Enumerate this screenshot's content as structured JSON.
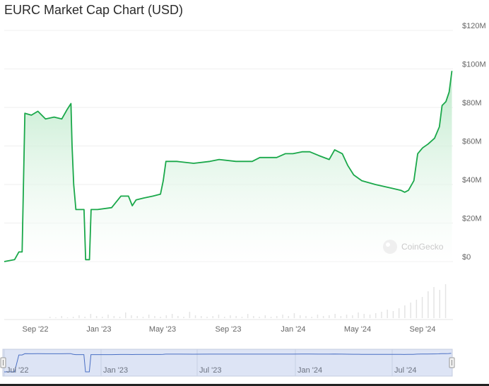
{
  "header": {
    "title": "EURC Market Cap Chart (USD)"
  },
  "watermark": "CoinGecko",
  "colors": {
    "line": "#1aa84a",
    "fillTop": "#b9e8c7",
    "grid": "#eeeeee",
    "navigator": "#d8e1f5",
    "navigatorLine": "#4a6fc4"
  },
  "chart_data": {
    "type": "area",
    "title": "EURC Market Cap Chart (USD)",
    "y_axis": {
      "ticks": [
        "$0",
        "$20M",
        "$40M",
        "$60M",
        "$80M",
        "$100M",
        "$120M"
      ],
      "ylim": [
        0,
        120
      ],
      "unit": "M USD",
      "position": "right"
    },
    "x_axis": {
      "ticks": [
        "Sep '22",
        "Jan '23",
        "May '23",
        "Sep '23",
        "Jan '24",
        "May '24",
        "Sep '24"
      ]
    },
    "navigator_ticks": [
      "Jul '22",
      "Jan '23",
      "Jul '23",
      "Jan '24",
      "Jul '24"
    ],
    "grid": true,
    "series": [
      {
        "values": [
          [
            "2022-07-01",
            0
          ],
          [
            "2022-07-20",
            1
          ],
          [
            "2022-07-28",
            5
          ],
          [
            "2022-08-03",
            5
          ],
          [
            "2022-08-08",
            77
          ],
          [
            "2022-08-20",
            76
          ],
          [
            "2022-09-01",
            78
          ],
          [
            "2022-09-15",
            74
          ],
          [
            "2022-10-01",
            75
          ],
          [
            "2022-10-15",
            74
          ],
          [
            "2022-10-25",
            79
          ],
          [
            "2022-11-01",
            82
          ],
          [
            "2022-11-03",
            60
          ],
          [
            "2022-11-06",
            40
          ],
          [
            "2022-11-10",
            27
          ],
          [
            "2022-11-25",
            27
          ],
          [
            "2022-11-28",
            1
          ],
          [
            "2022-12-05",
            1
          ],
          [
            "2022-12-08",
            27
          ],
          [
            "2022-12-20",
            27
          ],
          [
            "2023-01-15",
            28
          ],
          [
            "2023-02-01",
            34
          ],
          [
            "2023-02-15",
            34
          ],
          [
            "2023-02-22",
            29
          ],
          [
            "2023-03-01",
            32
          ],
          [
            "2023-03-15",
            33
          ],
          [
            "2023-04-01",
            34
          ],
          [
            "2023-04-15",
            35
          ],
          [
            "2023-04-20",
            42
          ],
          [
            "2023-04-25",
            52
          ],
          [
            "2023-05-15",
            52
          ],
          [
            "2023-06-15",
            51
          ],
          [
            "2023-07-15",
            52
          ],
          [
            "2023-08-01",
            53
          ],
          [
            "2023-09-01",
            52
          ],
          [
            "2023-10-01",
            52
          ],
          [
            "2023-10-15",
            54
          ],
          [
            "2023-11-15",
            54
          ],
          [
            "2023-12-01",
            56
          ],
          [
            "2023-12-15",
            56
          ],
          [
            "2024-01-01",
            57
          ],
          [
            "2024-01-15",
            57
          ],
          [
            "2024-02-01",
            55
          ],
          [
            "2024-02-20",
            53
          ],
          [
            "2024-03-01",
            58
          ],
          [
            "2024-03-15",
            56
          ],
          [
            "2024-03-25",
            50
          ],
          [
            "2024-04-05",
            45
          ],
          [
            "2024-04-20",
            42
          ],
          [
            "2024-05-15",
            40
          ],
          [
            "2024-06-15",
            38
          ],
          [
            "2024-07-01",
            37
          ],
          [
            "2024-07-08",
            36
          ],
          [
            "2024-07-15",
            37
          ],
          [
            "2024-07-25",
            42
          ],
          [
            "2024-08-01",
            56
          ],
          [
            "2024-08-10",
            59
          ],
          [
            "2024-08-20",
            61
          ],
          [
            "2024-09-01",
            64
          ],
          [
            "2024-09-10",
            70
          ],
          [
            "2024-09-15",
            81
          ],
          [
            "2024-09-22",
            83
          ],
          [
            "2024-09-28",
            88
          ],
          [
            "2024-10-03",
            99
          ]
        ]
      }
    ]
  }
}
